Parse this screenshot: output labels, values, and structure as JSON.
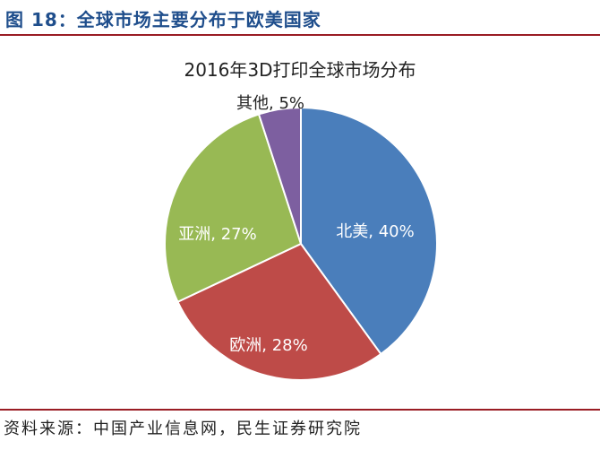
{
  "figure": {
    "title": "图 18：全球市场主要分布于欧美国家",
    "source": "资料来源：中国产业信息网，民生证券研究院"
  },
  "chart_data": {
    "type": "pie",
    "title": "2016年3D打印全球市场分布",
    "slices": [
      {
        "name": "北美",
        "value": 40,
        "label": "北美, 40%",
        "color": "#4a7ebb",
        "label_color": "#ffffff"
      },
      {
        "name": "欧洲",
        "value": 28,
        "label": "欧洲, 28%",
        "color": "#be4b48",
        "label_color": "#ffffff"
      },
      {
        "name": "亚洲",
        "value": 27,
        "label": "亚洲, 27%",
        "color": "#98b954",
        "label_color": "#ffffff"
      },
      {
        "name": "其他",
        "value": 5,
        "label": "其他, 5%",
        "color": "#7d5fa0",
        "label_color": "#222222"
      }
    ]
  }
}
